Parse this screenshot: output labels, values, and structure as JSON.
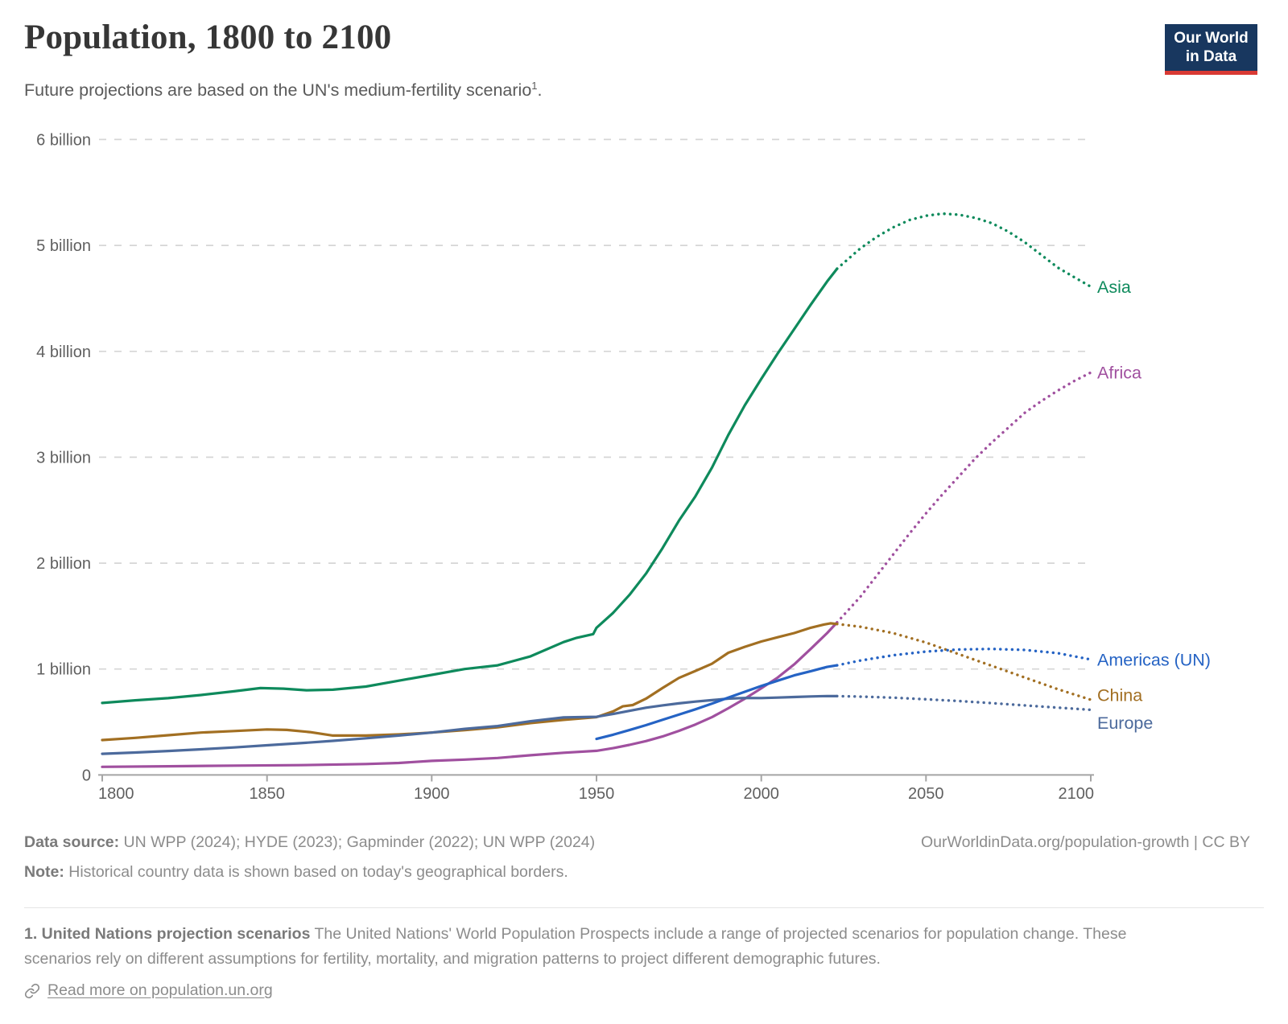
{
  "header": {
    "subtitle": "Future projections are based on the UN's medium-fertility scenario",
    "subtitle_sup": "1",
    "subtitle_suffix": ".",
    "logo_line1": "Our World",
    "logo_line2": "in Data",
    "logo_bg": "#18375f",
    "logo_accent": "#d93a34"
  },
  "chart_data": {
    "type": "line",
    "title": "Population, 1800 to 2100",
    "xlabel": "",
    "ylabel": "",
    "unit": "billions of people",
    "xlim": [
      1800,
      2100
    ],
    "ylim": [
      0,
      6
    ],
    "grid": "horizontal-dashed",
    "legend_position": "labels at line ends (right margin)",
    "projection_start_year": 2023,
    "projection_style": "dotted",
    "x_axis": {
      "ticks": [
        1800,
        1850,
        1900,
        1950,
        2000,
        2050,
        2100
      ]
    },
    "y_axis": {
      "ticks": [
        {
          "value": 0,
          "label": "0"
        },
        {
          "value": 1,
          "label": "1 billion"
        },
        {
          "value": 2,
          "label": "2 billion"
        },
        {
          "value": 3,
          "label": "3 billion"
        },
        {
          "value": 4,
          "label": "4 billion"
        },
        {
          "value": 5,
          "label": "5 billion"
        },
        {
          "value": 6,
          "label": "6 billion"
        }
      ]
    },
    "style": {
      "grid_color": "#d6d6d6",
      "axis_color": "#a5a5a5",
      "tick_label_color": "#606060"
    },
    "series": [
      {
        "name": "Asia",
        "color": "#0e8a5c",
        "label_dy": 0,
        "solid": [
          [
            1800,
            0.68
          ],
          [
            1810,
            0.705
          ],
          [
            1820,
            0.725
          ],
          [
            1830,
            0.755
          ],
          [
            1840,
            0.79
          ],
          [
            1848,
            0.82
          ],
          [
            1855,
            0.815
          ],
          [
            1862,
            0.8
          ],
          [
            1870,
            0.805
          ],
          [
            1880,
            0.835
          ],
          [
            1890,
            0.89
          ],
          [
            1900,
            0.945
          ],
          [
            1910,
            1.0
          ],
          [
            1920,
            1.035
          ],
          [
            1930,
            1.12
          ],
          [
            1940,
            1.255
          ],
          [
            1944,
            1.295
          ],
          [
            1949,
            1.33
          ],
          [
            1950,
            1.39
          ],
          [
            1955,
            1.53
          ],
          [
            1960,
            1.7
          ],
          [
            1965,
            1.9
          ],
          [
            1970,
            2.14
          ],
          [
            1975,
            2.4
          ],
          [
            1980,
            2.63
          ],
          [
            1985,
            2.9
          ],
          [
            1990,
            3.21
          ],
          [
            1995,
            3.49
          ],
          [
            2000,
            3.74
          ],
          [
            2005,
            3.98
          ],
          [
            2010,
            4.21
          ],
          [
            2015,
            4.44
          ],
          [
            2020,
            4.66
          ],
          [
            2023,
            4.78
          ]
        ],
        "projection": [
          [
            2023,
            4.78
          ],
          [
            2030,
            4.97
          ],
          [
            2035,
            5.08
          ],
          [
            2040,
            5.17
          ],
          [
            2045,
            5.24
          ],
          [
            2050,
            5.28
          ],
          [
            2055,
            5.3
          ],
          [
            2060,
            5.29
          ],
          [
            2065,
            5.26
          ],
          [
            2070,
            5.21
          ],
          [
            2075,
            5.13
          ],
          [
            2080,
            5.03
          ],
          [
            2085,
            4.91
          ],
          [
            2090,
            4.79
          ],
          [
            2095,
            4.7
          ],
          [
            2100,
            4.61
          ]
        ]
      },
      {
        "name": "Africa",
        "color": "#a0509f",
        "label_dy": 0,
        "solid": [
          [
            1800,
            0.077
          ],
          [
            1820,
            0.082
          ],
          [
            1840,
            0.088
          ],
          [
            1860,
            0.093
          ],
          [
            1880,
            0.103
          ],
          [
            1890,
            0.113
          ],
          [
            1900,
            0.133
          ],
          [
            1910,
            0.145
          ],
          [
            1920,
            0.16
          ],
          [
            1930,
            0.186
          ],
          [
            1940,
            0.21
          ],
          [
            1950,
            0.228
          ],
          [
            1955,
            0.253
          ],
          [
            1960,
            0.284
          ],
          [
            1965,
            0.32
          ],
          [
            1970,
            0.363
          ],
          [
            1975,
            0.416
          ],
          [
            1980,
            0.476
          ],
          [
            1985,
            0.545
          ],
          [
            1990,
            0.63
          ],
          [
            1995,
            0.72
          ],
          [
            2000,
            0.818
          ],
          [
            2005,
            0.92
          ],
          [
            2010,
            1.044
          ],
          [
            2015,
            1.19
          ],
          [
            2020,
            1.34
          ],
          [
            2023,
            1.44
          ]
        ],
        "projection": [
          [
            2023,
            1.44
          ],
          [
            2030,
            1.68
          ],
          [
            2035,
            1.88
          ],
          [
            2040,
            2.08
          ],
          [
            2045,
            2.28
          ],
          [
            2050,
            2.47
          ],
          [
            2055,
            2.65
          ],
          [
            2060,
            2.82
          ],
          [
            2065,
            2.99
          ],
          [
            2070,
            3.14
          ],
          [
            2075,
            3.28
          ],
          [
            2080,
            3.42
          ],
          [
            2085,
            3.53
          ],
          [
            2090,
            3.63
          ],
          [
            2095,
            3.72
          ],
          [
            2100,
            3.8
          ]
        ]
      },
      {
        "name": "China",
        "color": "#a26f22",
        "label_dy": -6,
        "solid": [
          [
            1800,
            0.33
          ],
          [
            1810,
            0.35
          ],
          [
            1820,
            0.375
          ],
          [
            1830,
            0.4
          ],
          [
            1840,
            0.415
          ],
          [
            1850,
            0.43
          ],
          [
            1856,
            0.425
          ],
          [
            1863,
            0.405
          ],
          [
            1870,
            0.372
          ],
          [
            1880,
            0.372
          ],
          [
            1890,
            0.383
          ],
          [
            1900,
            0.4
          ],
          [
            1910,
            0.423
          ],
          [
            1920,
            0.45
          ],
          [
            1930,
            0.49
          ],
          [
            1940,
            0.52
          ],
          [
            1950,
            0.546
          ],
          [
            1955,
            0.6
          ],
          [
            1958,
            0.648
          ],
          [
            1961,
            0.66
          ],
          [
            1965,
            0.72
          ],
          [
            1970,
            0.82
          ],
          [
            1975,
            0.916
          ],
          [
            1980,
            0.982
          ],
          [
            1985,
            1.05
          ],
          [
            1990,
            1.154
          ],
          [
            1995,
            1.21
          ],
          [
            2000,
            1.26
          ],
          [
            2005,
            1.3
          ],
          [
            2010,
            1.34
          ],
          [
            2015,
            1.39
          ],
          [
            2019,
            1.42
          ],
          [
            2021,
            1.432
          ],
          [
            2023,
            1.426
          ]
        ],
        "projection": [
          [
            2023,
            1.426
          ],
          [
            2030,
            1.4
          ],
          [
            2040,
            1.34
          ],
          [
            2050,
            1.25
          ],
          [
            2060,
            1.14
          ],
          [
            2070,
            1.03
          ],
          [
            2080,
            0.92
          ],
          [
            2090,
            0.81
          ],
          [
            2100,
            0.71
          ]
        ]
      },
      {
        "name": "Europe",
        "color": "#4C6A9C",
        "label_dy": 16,
        "solid": [
          [
            1800,
            0.2
          ],
          [
            1810,
            0.212
          ],
          [
            1820,
            0.226
          ],
          [
            1830,
            0.242
          ],
          [
            1840,
            0.26
          ],
          [
            1850,
            0.28
          ],
          [
            1860,
            0.3
          ],
          [
            1870,
            0.322
          ],
          [
            1880,
            0.346
          ],
          [
            1890,
            0.372
          ],
          [
            1900,
            0.4
          ],
          [
            1910,
            0.435
          ],
          [
            1920,
            0.462
          ],
          [
            1930,
            0.507
          ],
          [
            1940,
            0.543
          ],
          [
            1950,
            0.549
          ],
          [
            1955,
            0.576
          ],
          [
            1960,
            0.605
          ],
          [
            1965,
            0.635
          ],
          [
            1970,
            0.657
          ],
          [
            1975,
            0.676
          ],
          [
            1980,
            0.693
          ],
          [
            1985,
            0.706
          ],
          [
            1990,
            0.721
          ],
          [
            1995,
            0.727
          ],
          [
            2000,
            0.726
          ],
          [
            2005,
            0.731
          ],
          [
            2010,
            0.736
          ],
          [
            2015,
            0.741
          ],
          [
            2020,
            0.745
          ],
          [
            2023,
            0.744
          ]
        ],
        "projection": [
          [
            2023,
            0.744
          ],
          [
            2030,
            0.74
          ],
          [
            2040,
            0.73
          ],
          [
            2050,
            0.715
          ],
          [
            2060,
            0.698
          ],
          [
            2070,
            0.678
          ],
          [
            2080,
            0.657
          ],
          [
            2090,
            0.636
          ],
          [
            2100,
            0.615
          ]
        ]
      },
      {
        "name": "Americas (UN)",
        "color": "#2563c4",
        "label_dy": 0,
        "solid": [
          [
            1950,
            0.34
          ],
          [
            1955,
            0.38
          ],
          [
            1960,
            0.424
          ],
          [
            1965,
            0.47
          ],
          [
            1970,
            0.52
          ],
          [
            1975,
            0.57
          ],
          [
            1980,
            0.62
          ],
          [
            1985,
            0.674
          ],
          [
            1990,
            0.73
          ],
          [
            1995,
            0.785
          ],
          [
            2000,
            0.84
          ],
          [
            2005,
            0.89
          ],
          [
            2010,
            0.94
          ],
          [
            2015,
            0.98
          ],
          [
            2020,
            1.02
          ],
          [
            2023,
            1.035
          ]
        ],
        "projection": [
          [
            2023,
            1.035
          ],
          [
            2030,
            1.08
          ],
          [
            2040,
            1.13
          ],
          [
            2050,
            1.165
          ],
          [
            2060,
            1.185
          ],
          [
            2070,
            1.19
          ],
          [
            2080,
            1.18
          ],
          [
            2090,
            1.15
          ],
          [
            2100,
            1.09
          ]
        ]
      }
    ]
  },
  "footer": {
    "data_source_label": "Data source:",
    "data_source_value": " UN WPP (2024); HYDE (2023); Gapminder (2022); UN WPP (2024)",
    "attribution": "OurWorldinData.org/population-growth | CC BY",
    "note_label": "Note:",
    "note_value": " Historical country data is shown based on today's geographical borders."
  },
  "footnote": {
    "lead": "1. United Nations projection scenarios",
    "text": " The United Nations' World Population Prospects include a range of projected scenarios for population change. These scenarios rely on different assumptions for fertility, mortality, and migration patterns to project different demographic futures.",
    "link_label": "Read more on population.un.org"
  }
}
